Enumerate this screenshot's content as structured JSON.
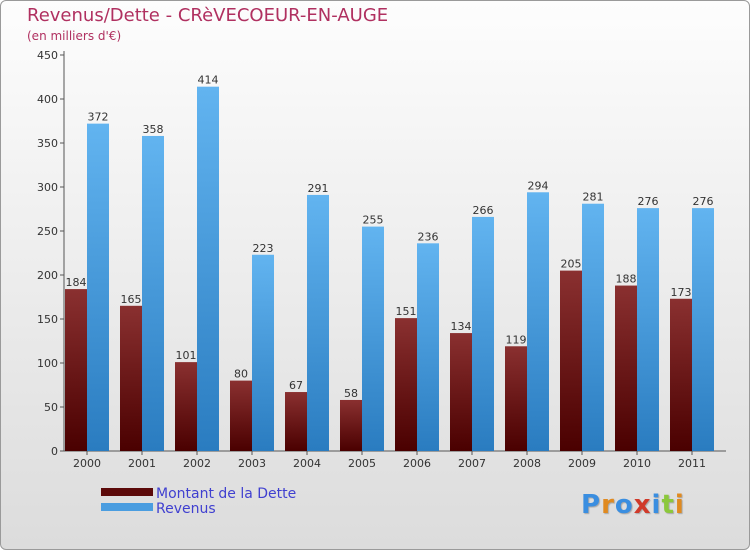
{
  "header": {
    "title": "Revenus/Dette - CRèVECOEUR-EN-AUGE",
    "subtitle": "(en milliers d'€)"
  },
  "chart_data": {
    "type": "bar",
    "title": "Revenus/Dette - CRèVECOEUR-EN-AUGE",
    "ylabel": "(en milliers d'€)",
    "xlabel": "",
    "categories": [
      "2000",
      "2001",
      "2002",
      "2003",
      "2004",
      "2005",
      "2006",
      "2007",
      "2008",
      "2009",
      "2010",
      "2011"
    ],
    "series": [
      {
        "name": "Montant de la Dette",
        "values": [
          184,
          165,
          101,
          80,
          67,
          58,
          151,
          134,
          119,
          205,
          188,
          173
        ]
      },
      {
        "name": "Revenus",
        "values": [
          372,
          358,
          414,
          223,
          291,
          255,
          236,
          266,
          294,
          281,
          276,
          276
        ]
      }
    ],
    "ylim": [
      0,
      450
    ],
    "yticks": [
      0,
      50,
      100,
      150,
      200,
      250,
      300,
      350,
      400,
      450
    ],
    "grid": false,
    "legend_position": "bottom-left"
  },
  "legend": {
    "items": [
      {
        "label": "Montant de la Dette",
        "color": "#5c0a0a"
      },
      {
        "label": "Revenus",
        "color": "#4a9de0"
      }
    ]
  },
  "colors": {
    "debt_dark": "#560000",
    "debt_light": "#8a3030",
    "revenue_dark": "#2e82c6",
    "revenue_light": "#5cb0ee",
    "title": "#b03060"
  },
  "logo": {
    "letters": [
      "P",
      "r",
      "o",
      "x",
      "i",
      "t",
      "i"
    ],
    "colors": [
      "#3a8ee0",
      "#e08a20",
      "#3a8ee0",
      "#d03a2a",
      "#3a8ee0",
      "#8cc83c",
      "#e08a20"
    ]
  }
}
